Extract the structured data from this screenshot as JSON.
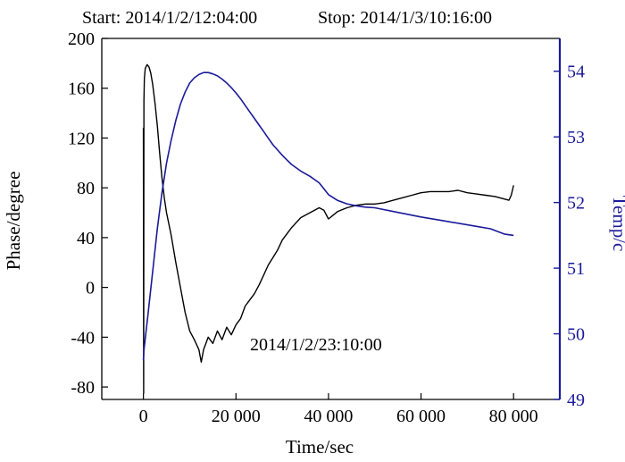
{
  "chart_data": {
    "type": "line",
    "header": {
      "start_label": "Start: 2014/1/2/12:04:00",
      "stop_label": "Stop: 2014/1/3/10:16:00"
    },
    "annotation": "2014/1/2/23:10:00",
    "xlabel": "Time/sec",
    "ylabel_left": "Phase/degree",
    "ylabel_right": "Temp/c",
    "xlim": [
      -9000,
      90000
    ],
    "ylim_left": [
      -90,
      200
    ],
    "ylim_right": [
      49,
      54.5
    ],
    "x_ticks": [
      {
        "value": 0,
        "label": "0"
      },
      {
        "value": 20000,
        "label": "20 000"
      },
      {
        "value": 40000,
        "label": "40 000"
      },
      {
        "value": 60000,
        "label": "60 000"
      },
      {
        "value": 80000,
        "label": "80 000"
      }
    ],
    "y_left_ticks": [
      {
        "value": 200,
        "label": "200"
      },
      {
        "value": 160,
        "label": "160"
      },
      {
        "value": 120,
        "label": "120"
      },
      {
        "value": 80,
        "label": "80"
      },
      {
        "value": 40,
        "label": "40"
      },
      {
        "value": 0,
        "label": "0"
      },
      {
        "value": -40,
        "label": "-40"
      },
      {
        "value": -80,
        "label": "-80"
      }
    ],
    "y_right_ticks": [
      {
        "value": 54,
        "label": "54"
      },
      {
        "value": 53,
        "label": "53"
      },
      {
        "value": 52,
        "label": "52"
      },
      {
        "value": 51,
        "label": "51"
      },
      {
        "value": 50,
        "label": "50"
      },
      {
        "value": 49,
        "label": "49"
      }
    ],
    "grid": false,
    "series": [
      {
        "axis": "left",
        "color": "#000000",
        "x": [
          0,
          50,
          100,
          200,
          400,
          800,
          1200,
          1600,
          2000,
          2500,
          3000,
          3500,
          4000,
          4500,
          5000,
          6000,
          7000,
          8000,
          9000,
          10000,
          11000,
          12000,
          12500,
          13000,
          14000,
          15000,
          16000,
          17000,
          18000,
          19000,
          20000,
          21000,
          22000,
          23000,
          24000,
          25000,
          26000,
          27000,
          28000,
          29000,
          30000,
          32000,
          34000,
          36000,
          38000,
          39000,
          40000,
          41000,
          42000,
          44000,
          46000,
          48000,
          50000,
          52000,
          54000,
          56000,
          58000,
          60000,
          62000,
          64000,
          66000,
          68000,
          70000,
          72000,
          74000,
          76000,
          78000,
          79000,
          79500,
          80000
        ],
        "y": [
          128,
          -85,
          150,
          168,
          176,
          179,
          177,
          172,
          163,
          148,
          130,
          108,
          88,
          72,
          60,
          42,
          20,
          0,
          -20,
          -35,
          -42,
          -50,
          -60,
          -50,
          -40,
          -45,
          -35,
          -42,
          -32,
          -38,
          -30,
          -25,
          -15,
          -10,
          -5,
          2,
          10,
          18,
          24,
          30,
          38,
          48,
          56,
          60,
          64,
          62,
          55,
          58,
          61,
          64,
          66,
          67,
          67,
          68,
          70,
          72,
          74,
          76,
          77,
          77,
          77,
          78,
          76,
          75,
          74,
          73,
          71,
          70,
          74,
          82
        ]
      },
      {
        "axis": "right",
        "color": "#1a1a9a",
        "x": [
          0,
          100,
          1000,
          2000,
          3000,
          4000,
          5000,
          6000,
          7000,
          8000,
          9000,
          10000,
          11000,
          12000,
          13000,
          14000,
          15000,
          16000,
          17000,
          18000,
          19000,
          20000,
          21000,
          22000,
          23000,
          24000,
          25000,
          26000,
          27000,
          28000,
          29000,
          30000,
          31000,
          32000,
          34000,
          36000,
          38000,
          40000,
          42000,
          44000,
          46000,
          48000,
          50000,
          55000,
          60000,
          65000,
          70000,
          75000,
          78000,
          80000
        ],
        "y": [
          49.6,
          49.75,
          50.3,
          50.95,
          51.6,
          52.15,
          52.6,
          52.95,
          53.25,
          53.5,
          53.68,
          53.82,
          53.9,
          53.95,
          53.98,
          53.98,
          53.96,
          53.93,
          53.88,
          53.82,
          53.75,
          53.67,
          53.58,
          53.48,
          53.38,
          53.28,
          53.18,
          53.08,
          52.98,
          52.88,
          52.8,
          52.72,
          52.65,
          52.58,
          52.48,
          52.4,
          52.3,
          52.12,
          52.03,
          51.98,
          51.95,
          51.93,
          51.92,
          51.85,
          51.78,
          51.72,
          51.66,
          51.6,
          51.52,
          51.5
        ]
      }
    ]
  }
}
